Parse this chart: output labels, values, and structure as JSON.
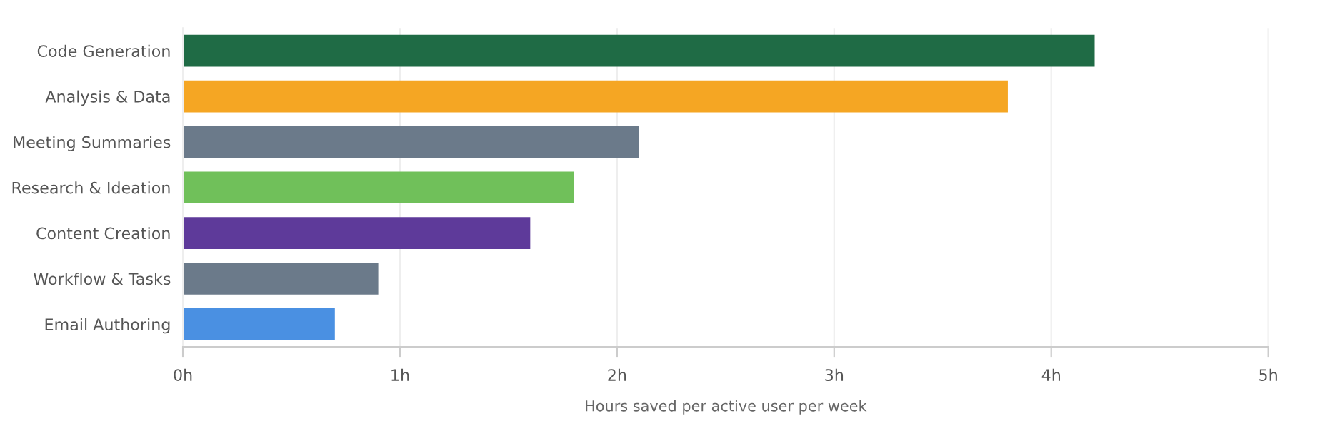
{
  "chart_data": {
    "type": "bar",
    "orientation": "horizontal",
    "xlabel": "Hours saved per active user per week",
    "categories": [
      "Code Generation",
      "Analysis & Data",
      "Meeting Summaries",
      "Research & Ideation",
      "Content Creation",
      "Workflow & Tasks",
      "Email Authoring"
    ],
    "values": [
      4.2,
      3.8,
      2.1,
      1.8,
      1.6,
      0.9,
      0.7
    ],
    "colors": [
      "#1f6b45",
      "#f5a623",
      "#6b7a8a",
      "#70c05a",
      "#5e3a9a",
      "#6b7a8a",
      "#4a90e2"
    ],
    "xlim": [
      0,
      5
    ],
    "xticks": [
      {
        "value": 0,
        "label": "0h"
      },
      {
        "value": 1,
        "label": "1h"
      },
      {
        "value": 2,
        "label": "2h"
      },
      {
        "value": 3,
        "label": "3h"
      },
      {
        "value": 4,
        "label": "4h"
      },
      {
        "value": 5,
        "label": "5h"
      }
    ],
    "grid": "x"
  }
}
